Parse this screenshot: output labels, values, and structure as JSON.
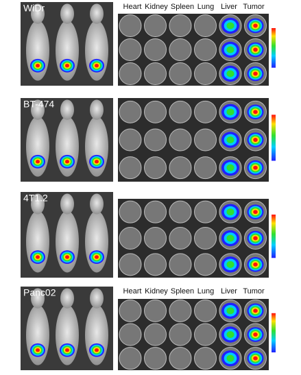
{
  "panels": [
    {
      "label": "WiDr",
      "organs": [
        "Heart",
        "Kidney",
        "Spleen",
        "Lung",
        "Liver",
        "Tumor"
      ]
    },
    {
      "label": "BT-474"
    },
    {
      "label": "4T1.2"
    },
    {
      "label": "Panc02",
      "organs": [
        "Heart",
        "Kidney",
        "Spleen",
        "Lung",
        "Liver",
        "Tumor"
      ]
    }
  ]
}
